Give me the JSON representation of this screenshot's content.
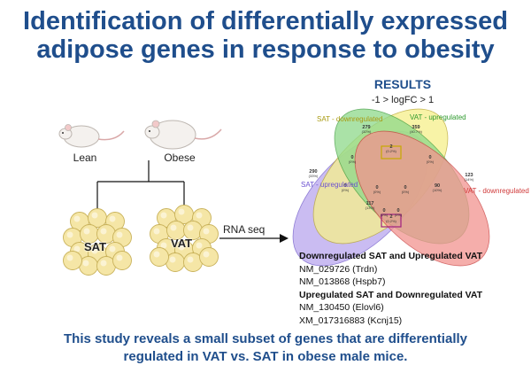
{
  "title_line1": "Identification of differentially expressed",
  "title_line2": "adipose genes in response to obesity",
  "results": {
    "title": "RESULTS",
    "threshold": "-1 > logFC > 1",
    "venn_labels": {
      "sat_down": "SAT - downregulated",
      "vat_up": "VAT - upregulated",
      "sat_up": "SAT - upregulated",
      "vat_down": "VAT - downregulated"
    },
    "venn_colors": {
      "sat_down": "#f6f08a",
      "vat_up": "#8ed98a",
      "sat_up": "#b9a6ee",
      "vat_down": "#f2938f"
    },
    "venn_values": [
      {
        "n": "279",
        "p": "(32%)"
      },
      {
        "n": "359",
        "p": "(40.7%)"
      },
      {
        "n": "290",
        "p": "(33%)"
      },
      {
        "n": "123",
        "p": "(14%)"
      },
      {
        "n": "0",
        "p": "(0%)"
      },
      {
        "n": "2",
        "p": "(0.2%)"
      },
      {
        "n": "0",
        "p": "(0%)"
      },
      {
        "n": "0",
        "p": "(0%)"
      },
      {
        "n": "0",
        "p": "(0%)"
      },
      {
        "n": "117",
        "p": "(13%)"
      },
      {
        "n": "0",
        "p": "(0%)"
      },
      {
        "n": "90",
        "p": "(10%)"
      },
      {
        "n": "0",
        "p": "(0%)"
      },
      {
        "n": "0",
        "p": "(0%)"
      },
      {
        "n": "2",
        "p": "(0.2%)"
      }
    ]
  },
  "diagram": {
    "mouse_lean": "Lean",
    "mouse_obese": "Obese",
    "tissue_sat": "SAT",
    "tissue_vat": "VAT",
    "method": "RNA seq"
  },
  "genes": {
    "group1_title": "Downregulated SAT and Upregulated VAT",
    "group1": [
      "NM_029726 (Trdn)",
      "NM_013868 (Hspb7)"
    ],
    "group2_title": "Upregulated SAT and Downregulated VAT",
    "group2": [
      "NM_130450 (Elovl6)",
      "XM_017316883 (Kcnj15)"
    ]
  },
  "conclusion_line1": "This study reveals a small subset of genes that are differentially",
  "conclusion_line2": "regulated in VAT vs. SAT in obese male mice."
}
